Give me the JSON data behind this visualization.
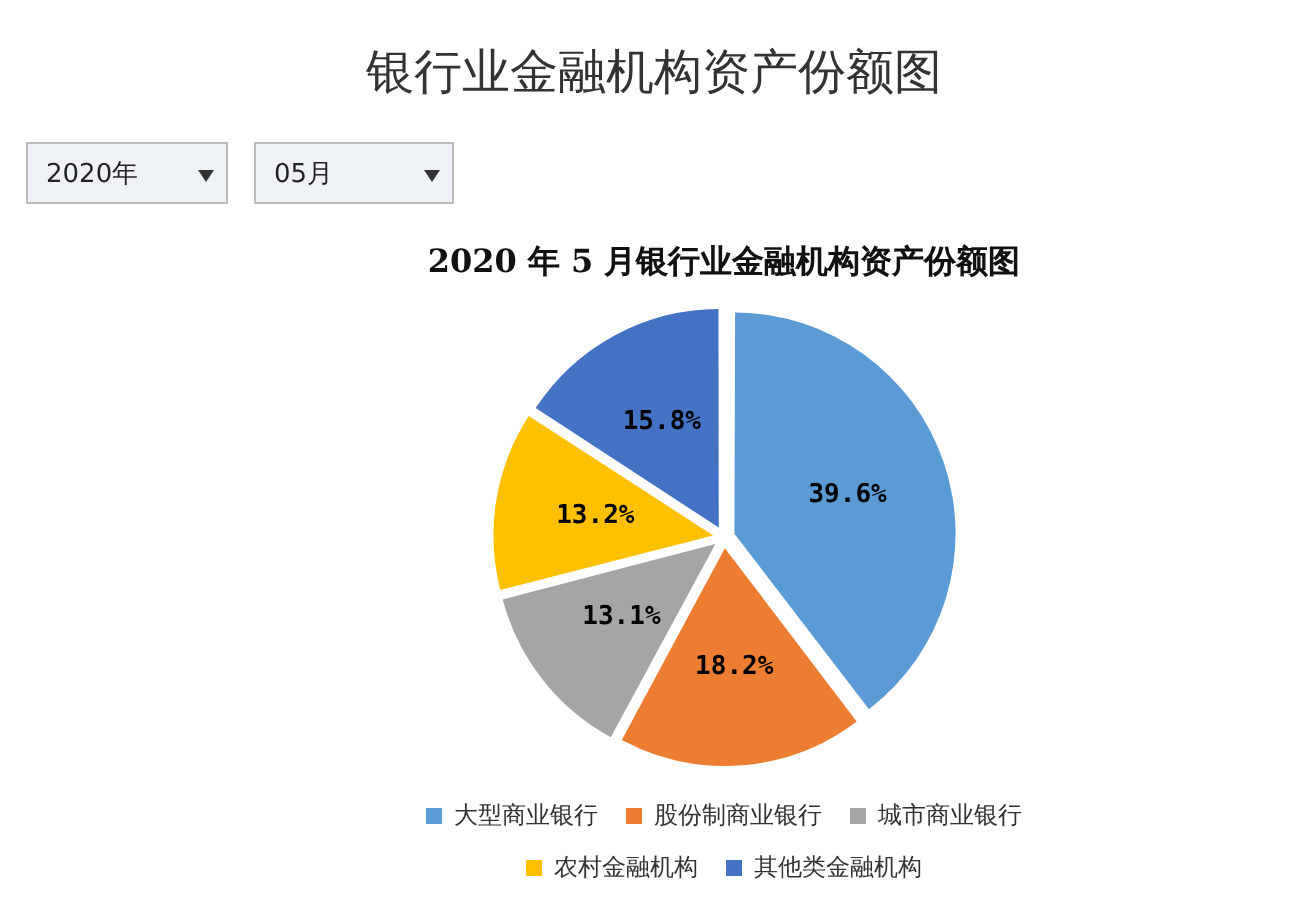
{
  "chart_data": {
    "type": "pie",
    "title": "银行业金融机构资产份额图",
    "subtitle": "2020 年 5 月银行业金融机构资产份额图",
    "annotations": [
      "2020年",
      "05月"
    ],
    "categories": [
      "大型商业银行",
      "股份制商业银行",
      "城市商业银行",
      "农村金融机构",
      "其他类金融机构"
    ],
    "values": [
      39.6,
      18.2,
      13.1,
      13.2,
      15.8
    ],
    "value_labels": [
      "39.6%",
      "18.2%",
      "13.1%",
      "13.2%",
      "15.8%"
    ],
    "colors": [
      "#5b9bd5",
      "#ed7d31",
      "#a5a5a5",
      "#ffc000",
      "#4472c4"
    ],
    "legend": "bottom"
  }
}
